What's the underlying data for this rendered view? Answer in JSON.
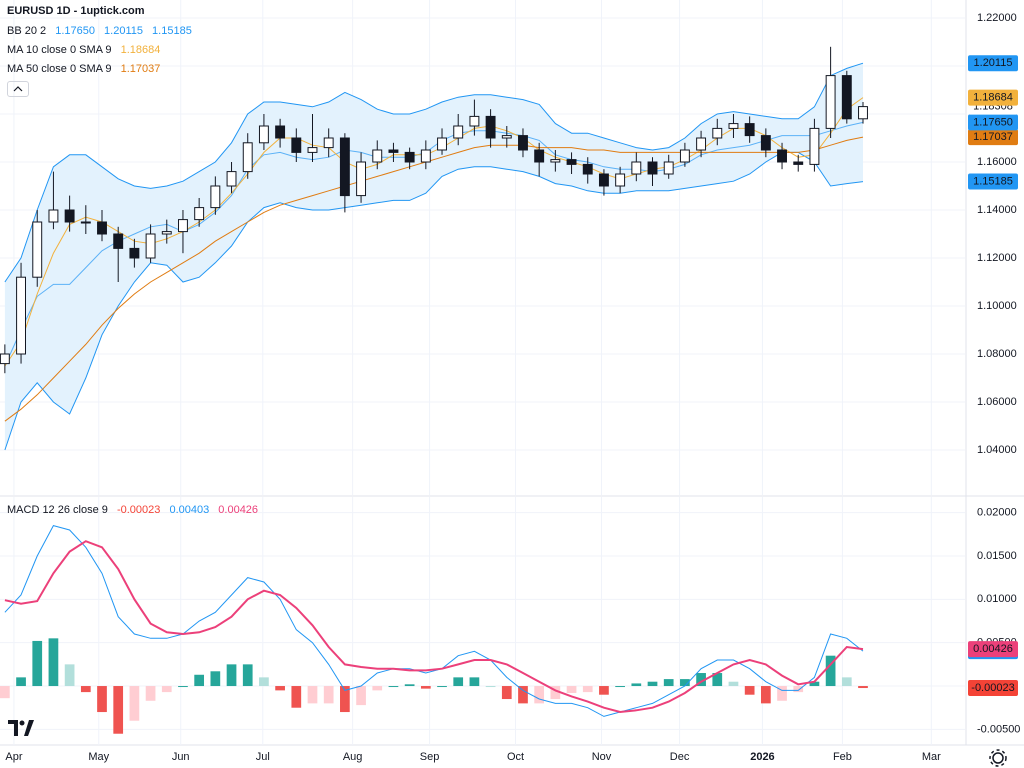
{
  "chart_data": [
    {
      "type": "candlestick",
      "title": "EURUSD 1D - 1uptick.com",
      "up_color": "#ffffff",
      "down_color": "#131722",
      "outline_color": "#131722",
      "open": [
        1.076,
        1.08,
        1.112,
        1.135,
        1.14,
        1.135,
        1.135,
        1.13,
        1.124,
        1.12,
        1.13,
        1.131,
        1.136,
        1.141,
        1.15,
        1.156,
        1.168,
        1.175,
        1.17,
        1.164,
        1.166,
        1.17,
        1.146,
        1.16,
        1.165,
        1.164,
        1.16,
        1.165,
        1.17,
        1.175,
        1.179,
        1.17,
        1.171,
        1.165,
        1.16,
        1.161,
        1.159,
        1.155,
        1.15,
        1.155,
        1.16,
        1.155,
        1.16,
        1.165,
        1.17,
        1.174,
        1.176,
        1.171,
        1.165,
        1.16,
        1.159,
        1.174,
        1.196,
        1.178
      ],
      "high": [
        1.084,
        1.118,
        1.14,
        1.156,
        1.146,
        1.142,
        1.14,
        1.133,
        1.128,
        1.134,
        1.136,
        1.14,
        1.145,
        1.154,
        1.16,
        1.172,
        1.18,
        1.178,
        1.174,
        1.18,
        1.174,
        1.172,
        1.164,
        1.169,
        1.168,
        1.166,
        1.169,
        1.174,
        1.18,
        1.186,
        1.182,
        1.175,
        1.174,
        1.168,
        1.165,
        1.164,
        1.162,
        1.157,
        1.158,
        1.164,
        1.162,
        1.163,
        1.168,
        1.173,
        1.178,
        1.18,
        1.179,
        1.174,
        1.168,
        1.163,
        1.178,
        1.208,
        1.198,
        1.185
      ],
      "low": [
        1.072,
        1.076,
        1.108,
        1.132,
        1.131,
        1.13,
        1.127,
        1.11,
        1.116,
        1.118,
        1.126,
        1.122,
        1.133,
        1.138,
        1.147,
        1.153,
        1.165,
        1.166,
        1.16,
        1.16,
        1.162,
        1.139,
        1.143,
        1.157,
        1.16,
        1.157,
        1.157,
        1.163,
        1.167,
        1.171,
        1.166,
        1.166,
        1.162,
        1.154,
        1.156,
        1.155,
        1.151,
        1.146,
        1.147,
        1.152,
        1.15,
        1.153,
        1.158,
        1.162,
        1.167,
        1.17,
        1.168,
        1.162,
        1.157,
        1.156,
        1.156,
        1.17,
        1.176,
        1.176
      ],
      "close": [
        1.08,
        1.112,
        1.135,
        1.14,
        1.135,
        1.135,
        1.13,
        1.124,
        1.12,
        1.13,
        1.131,
        1.136,
        1.141,
        1.15,
        1.156,
        1.168,
        1.175,
        1.17,
        1.164,
        1.166,
        1.17,
        1.146,
        1.16,
        1.165,
        1.164,
        1.16,
        1.165,
        1.17,
        1.175,
        1.179,
        1.17,
        1.171,
        1.165,
        1.16,
        1.161,
        1.159,
        1.155,
        1.15,
        1.155,
        1.16,
        1.155,
        1.16,
        1.165,
        1.17,
        1.174,
        1.176,
        1.171,
        1.165,
        1.16,
        1.159,
        1.174,
        1.196,
        1.178,
        1.18308
      ],
      "last_price_label": "1.18308",
      "indicators": [
        {
          "name": "BB 20 2",
          "color": "#2196f3",
          "fill": "#e3f2fd",
          "lines": [
            {
              "values": [
                1.075,
                1.09,
                1.104,
                1.109,
                1.109,
                1.116,
                1.123,
                1.127,
                1.13,
                1.133,
                1.134,
                1.131,
                1.134,
                1.139,
                1.146,
                1.157,
                1.163,
                1.164,
                1.162,
                1.161,
                1.162,
                1.165,
                1.164,
                1.162,
                1.162,
                1.162,
                1.164,
                1.169,
                1.172,
                1.173,
                1.173,
                1.172,
                1.171,
                1.169,
                1.163,
                1.161,
                1.16,
                1.158,
                1.157,
                1.157,
                1.156,
                1.157,
                1.159,
                1.163,
                1.165,
                1.166,
                1.167,
                1.169,
                1.171,
                1.171,
                1.171,
                1.173,
                1.175,
                1.1765
              ],
              "last_value_label": "1.17650"
            },
            {
              "values": [
                1.11,
                1.12,
                1.14,
                1.158,
                1.163,
                1.163,
                1.158,
                1.153,
                1.15,
                1.149,
                1.15,
                1.152,
                1.156,
                1.16,
                1.168,
                1.18,
                1.185,
                1.185,
                1.184,
                1.183,
                1.185,
                1.189,
                1.186,
                1.182,
                1.18,
                1.18,
                1.182,
                1.185,
                1.187,
                1.188,
                1.188,
                1.187,
                1.186,
                1.184,
                1.176,
                1.172,
                1.172,
                1.17,
                1.168,
                1.166,
                1.165,
                1.166,
                1.17,
                1.176,
                1.18,
                1.181,
                1.18,
                1.179,
                1.178,
                1.178,
                1.183,
                1.196,
                1.199,
                1.20115
              ],
              "last_value_label": "1.20115"
            },
            {
              "values": [
                1.04,
                1.06,
                1.068,
                1.06,
                1.055,
                1.07,
                1.088,
                1.1,
                1.11,
                1.118,
                1.117,
                1.11,
                1.112,
                1.118,
                1.125,
                1.135,
                1.141,
                1.143,
                1.141,
                1.14,
                1.14,
                1.141,
                1.142,
                1.143,
                1.144,
                1.144,
                1.147,
                1.154,
                1.157,
                1.158,
                1.158,
                1.157,
                1.156,
                1.154,
                1.151,
                1.15,
                1.148,
                1.147,
                1.147,
                1.148,
                1.148,
                1.148,
                1.149,
                1.15,
                1.151,
                1.152,
                1.155,
                1.16,
                1.164,
                1.164,
                1.16,
                1.15,
                1.151,
                1.15185
              ],
              "last_value_label": "1.15185"
            }
          ]
        },
        {
          "name": "MA 10 close 0 SMA 9",
          "color": "#f2b13c",
          "lines": [
            {
              "values": [
                1.075,
                1.085,
                1.105,
                1.122,
                1.134,
                1.137,
                1.135,
                1.131,
                1.127,
                1.126,
                1.128,
                1.131,
                1.135,
                1.14,
                1.147,
                1.155,
                1.164,
                1.17,
                1.17,
                1.167,
                1.166,
                1.16,
                1.157,
                1.159,
                1.163,
                1.163,
                1.163,
                1.166,
                1.17,
                1.174,
                1.175,
                1.173,
                1.17,
                1.165,
                1.162,
                1.16,
                1.158,
                1.155,
                1.153,
                1.155,
                1.157,
                1.158,
                1.161,
                1.165,
                1.17,
                1.174,
                1.174,
                1.171,
                1.166,
                1.162,
                1.163,
                1.172,
                1.182,
                1.18684
              ],
              "last_value_label": "1.18684"
            }
          ]
        },
        {
          "name": "MA 50 close 0 SMA 9",
          "color": "#e07c12",
          "lines": [
            {
              "values": [
                1.052,
                1.057,
                1.063,
                1.07,
                1.077,
                1.084,
                1.092,
                1.099,
                1.105,
                1.11,
                1.114,
                1.118,
                1.122,
                1.127,
                1.131,
                1.135,
                1.139,
                1.142,
                1.144,
                1.146,
                1.148,
                1.15,
                1.152,
                1.154,
                1.156,
                1.158,
                1.16,
                1.162,
                1.164,
                1.166,
                1.167,
                1.167,
                1.167,
                1.166,
                1.166,
                1.166,
                1.165,
                1.165,
                1.164,
                1.164,
                1.164,
                1.164,
                1.164,
                1.164,
                1.164,
                1.164,
                1.164,
                1.164,
                1.164,
                1.164,
                1.165,
                1.167,
                1.169,
                1.17037
              ],
              "last_value_label": "1.17037"
            }
          ]
        }
      ],
      "ylim": [
        1.02125,
        1.2275
      ],
      "yticks": [
        {
          "value": 1.04,
          "label": "1.04000"
        },
        {
          "value": 1.06,
          "label": "1.06000"
        },
        {
          "value": 1.08,
          "label": "1.08000"
        },
        {
          "value": 1.1,
          "label": "1.10000"
        },
        {
          "value": 1.12,
          "label": "1.12000"
        },
        {
          "value": 1.14,
          "label": "1.14000"
        },
        {
          "value": 1.16,
          "label": "1.16000"
        },
        {
          "value": 1.18,
          "label": "1.18000"
        },
        {
          "value": 1.2,
          "label": "1.20000"
        },
        {
          "value": 1.22,
          "label": "1.22000"
        }
      ],
      "xlim": [
        -0.3,
        59.3
      ],
      "xticks": [
        {
          "value": 0.56,
          "label": "Apr"
        },
        {
          "value": 5.8,
          "label": "May"
        },
        {
          "value": 10.86,
          "label": "Jun"
        },
        {
          "value": 15.93,
          "label": "Jul"
        },
        {
          "value": 21.48,
          "label": "Aug"
        },
        {
          "value": 26.23,
          "label": "Sep"
        },
        {
          "value": 31.54,
          "label": "Oct"
        },
        {
          "value": 36.85,
          "label": "Nov"
        },
        {
          "value": 41.67,
          "label": "Dec"
        },
        {
          "value": 46.79,
          "label": "2026"
        },
        {
          "value": 51.73,
          "label": "Feb"
        },
        {
          "value": 57.22,
          "label": "Mar"
        }
      ],
      "grid": true
    },
    {
      "type": "macd",
      "title": "MACD 12 26 close 9",
      "histogram": {
        "values": [
          -0.0014,
          0.001,
          0.0052,
          0.0055,
          0.0025,
          -0.0007,
          -0.003,
          -0.0055,
          -0.004,
          -0.0017,
          -0.0007,
          0.0,
          0.0013,
          0.0017,
          0.0025,
          0.0025,
          0.001,
          -0.0005,
          -0.0025,
          -0.002,
          -0.002,
          -0.003,
          -0.0022,
          -0.0005,
          0.0,
          0.0002,
          -0.0003,
          0.0,
          0.001,
          0.001,
          0.0,
          -0.0015,
          -0.002,
          -0.002,
          -0.0015,
          -0.0008,
          -0.0007,
          -0.001,
          0.0,
          0.0003,
          0.0005,
          0.0008,
          0.0008,
          0.0015,
          0.0015,
          0.0005,
          -0.001,
          -0.002,
          -0.0017,
          -0.0007,
          0.0005,
          0.0035,
          0.001,
          -0.00023
        ],
        "colors": [
          "#26a69a",
          "#b2dfdb",
          "#ef5350",
          "#ffcdd2"
        ],
        "color": "#f44336",
        "last_value_label": "-0.00023"
      },
      "macd": {
        "values": [
          0.0085,
          0.0105,
          0.015,
          0.0185,
          0.018,
          0.016,
          0.013,
          0.008,
          0.006,
          0.0055,
          0.0055,
          0.006,
          0.0075,
          0.0085,
          0.0105,
          0.0125,
          0.012,
          0.01,
          0.0065,
          0.005,
          0.0025,
          -0.0005,
          0.0,
          0.0015,
          0.002,
          0.002,
          0.0015,
          0.002,
          0.0035,
          0.004,
          0.003,
          0.001,
          -0.0005,
          -0.0015,
          -0.002,
          -0.002,
          -0.0025,
          -0.0035,
          -0.003,
          -0.0025,
          -0.002,
          -0.001,
          0.0,
          0.002,
          0.003,
          0.003,
          0.002,
          0.0005,
          -0.0005,
          -0.0005,
          0.001,
          0.006,
          0.0055,
          0.00403
        ],
        "color": "#2196f3",
        "last_value_label": "0.00403"
      },
      "signal": {
        "values": [
          0.0099,
          0.0095,
          0.0098,
          0.013,
          0.0155,
          0.0167,
          0.016,
          0.0135,
          0.01,
          0.0072,
          0.0062,
          0.006,
          0.0062,
          0.0068,
          0.008,
          0.01,
          0.011,
          0.0105,
          0.009,
          0.007,
          0.0045,
          0.0025,
          0.0022,
          0.002,
          0.002,
          0.0018,
          0.0018,
          0.002,
          0.0025,
          0.003,
          0.003,
          0.0025,
          0.0015,
          0.0005,
          -0.0005,
          -0.0012,
          -0.0018,
          -0.0025,
          -0.003,
          -0.0028,
          -0.0025,
          -0.0018,
          -0.0008,
          0.0005,
          0.0015,
          0.0025,
          0.003,
          0.0025,
          0.0012,
          0.0002,
          0.0005,
          0.0025,
          0.0045,
          0.00426
        ],
        "color": "#ec407a",
        "last_value_label": "0.00426"
      },
      "ylim": [
        -0.0068,
        0.0218
      ],
      "yticks": [
        {
          "value": -0.005,
          "label": "-0.00500"
        },
        {
          "value": 0,
          "label": "0.00000"
        },
        {
          "value": 0.005,
          "label": "0.00500"
        },
        {
          "value": 0.01,
          "label": "0.01000"
        },
        {
          "value": 0.015,
          "label": "0.01500"
        },
        {
          "value": 0.02,
          "label": "0.02000"
        }
      ],
      "grid": true
    }
  ]
}
